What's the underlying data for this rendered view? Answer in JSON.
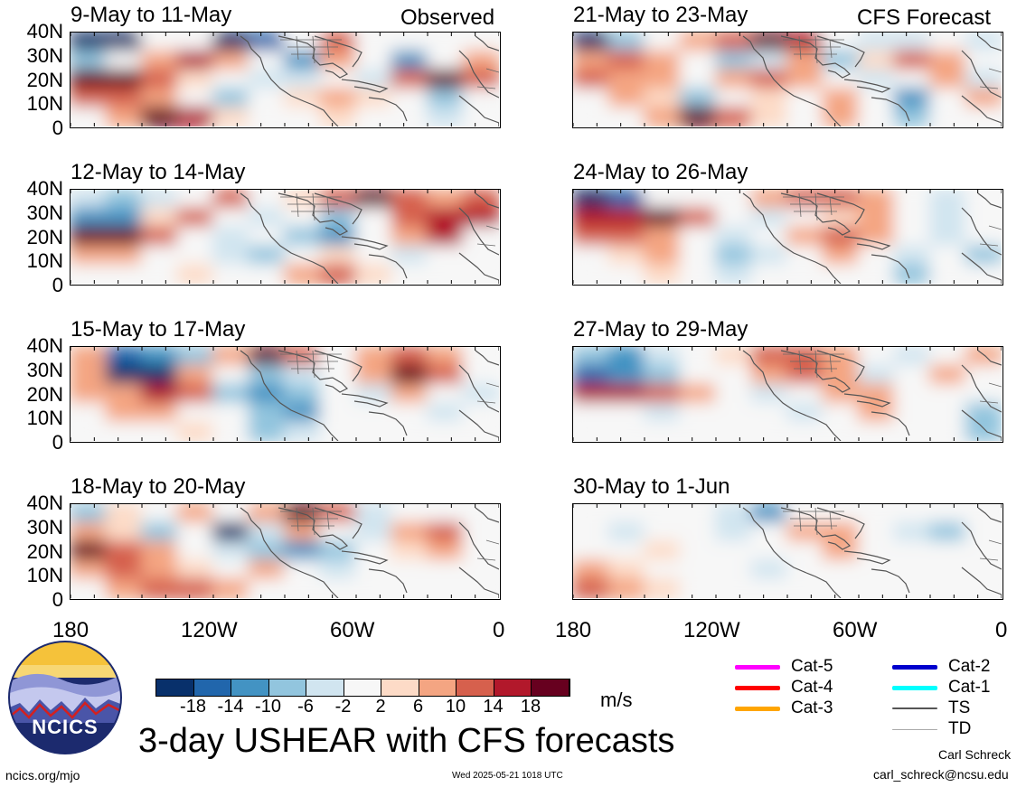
{
  "left_header": "Observed",
  "right_header": "CFS Forecast",
  "panels": [
    {
      "id": "p1",
      "title": "9-May to 11-May"
    },
    {
      "id": "p2",
      "title": "21-May to 23-May"
    },
    {
      "id": "p3",
      "title": "12-May to 14-May"
    },
    {
      "id": "p4",
      "title": "24-May to 26-May"
    },
    {
      "id": "p5",
      "title": "15-May to 17-May"
    },
    {
      "id": "p6",
      "title": "27-May to 29-May"
    },
    {
      "id": "p7",
      "title": "18-May to 20-May"
    },
    {
      "id": "p8",
      "title": "30-May to 1-Jun"
    }
  ],
  "lat_labels": [
    "40N",
    "30N",
    "20N",
    "10N",
    "0"
  ],
  "lon_labels": [
    "180",
    "120W",
    "60W",
    "0"
  ],
  "colorbar": {
    "colors": [
      "#08306b",
      "#2166ac",
      "#4393c3",
      "#92c5de",
      "#d1e5f0",
      "#f7f7f7",
      "#fddbc7",
      "#f4a582",
      "#d6604d",
      "#b2182b",
      "#67001f"
    ],
    "ticks": [
      "-18",
      "-14",
      "-10",
      "-6",
      "-2",
      "2",
      "6",
      "10",
      "14",
      "18"
    ],
    "units": "m/s"
  },
  "legend": [
    {
      "label": "Cat-5",
      "color": "#ff00ff"
    },
    {
      "label": "Cat-4",
      "color": "#ff0000"
    },
    {
      "label": "Cat-3",
      "color": "#ffa500"
    },
    {
      "label": "Cat-2",
      "color": "#0000cd"
    },
    {
      "label": "Cat-1",
      "color": "#00ffff"
    },
    {
      "label": "TS",
      "color": "#555555"
    },
    {
      "label": "TD",
      "color": "#aaaaaa"
    }
  ],
  "logo_text": "NCICS",
  "main_title": "3-day USHEAR with CFS forecasts",
  "footer": {
    "site": "ncics.org/mjo",
    "timestamp": "Wed 2025-05-21 1018 UTC",
    "author": "Carl Schreck",
    "email": "carl_schreck@ncsu.edu"
  },
  "fields": {
    "p1": [
      [
        -1,
        -1,
        0,
        0,
        -1,
        -0.8,
        0,
        0.5,
        0,
        0,
        0,
        0
      ],
      [
        -0.5,
        0,
        0.4,
        0.8,
        0.4,
        0,
        -0.6,
        0.3,
        0,
        -0.6,
        0,
        0.4
      ],
      [
        1,
        0.9,
        0.5,
        0.2,
        0,
        -0.3,
        -0.3,
        0,
        -0.3,
        0.5,
        0.9,
        0.6
      ],
      [
        0.5,
        0.6,
        0.4,
        0,
        -0.4,
        0,
        0.2,
        0.4,
        0.2,
        0,
        -0.4,
        0
      ],
      [
        0,
        0.4,
        0.9,
        0.7,
        0.2,
        0,
        0,
        0.2,
        0,
        0,
        -0.3,
        0
      ]
    ],
    "p2": [
      [
        -0.9,
        -0.5,
        0,
        0.3,
        0.5,
        0.9,
        0.8,
        0,
        -0.3,
        -0.3,
        0,
        -0.2
      ],
      [
        0.4,
        0.6,
        0.3,
        0,
        -0.5,
        -0.3,
        0.3,
        -0.4,
        0.2,
        0.6,
        0.4,
        0
      ],
      [
        0.6,
        0.3,
        0.4,
        0,
        0.3,
        0.6,
        0.3,
        0,
        -0.3,
        0,
        0.3,
        -0.3
      ],
      [
        0,
        0.4,
        0.2,
        -0.4,
        0,
        0.2,
        0,
        0.3,
        0,
        -0.6,
        0,
        0.3
      ],
      [
        0,
        0,
        0.4,
        0.9,
        0.5,
        0.2,
        0,
        0.3,
        0,
        -0.5,
        0,
        0
      ]
    ],
    "p3": [
      [
        -0.3,
        -0.5,
        -0.2,
        0,
        0.5,
        0,
        0.2,
        0.5,
        0.9,
        0.6,
        0.3,
        0.5
      ],
      [
        -0.6,
        -0.6,
        0.2,
        0.5,
        0,
        -0.3,
        0,
        -0.5,
        0,
        0.6,
        0.7,
        0.8
      ],
      [
        0.9,
        1,
        0.6,
        0,
        -0.2,
        0,
        -0.5,
        -0.7,
        0,
        0.4,
        0.7,
        0
      ],
      [
        0.4,
        0.3,
        0,
        0,
        -0.3,
        -0.5,
        0,
        0.2,
        0,
        -0.3,
        0,
        0
      ],
      [
        0,
        0,
        0,
        0.2,
        0,
        0,
        0.3,
        0.5,
        0.2,
        0,
        0,
        0
      ]
    ],
    "p4": [
      [
        -1,
        -0.8,
        0,
        0,
        0,
        0.4,
        0.6,
        0.5,
        0.3,
        0,
        -0.2,
        0
      ],
      [
        0.7,
        0.8,
        1,
        0.5,
        0,
        -0.3,
        0,
        0.2,
        0.3,
        0,
        -0.3,
        0
      ],
      [
        0.5,
        0.6,
        0.3,
        0,
        -0.2,
        0,
        0.3,
        0.5,
        0.3,
        0,
        -0.3,
        0
      ],
      [
        0,
        0.2,
        0.3,
        0,
        -0.5,
        -0.3,
        0,
        0.4,
        0,
        -0.3,
        0,
        -0.5
      ],
      [
        0,
        0,
        0.2,
        0,
        -0.2,
        0,
        0,
        0,
        0,
        -0.4,
        0,
        0
      ]
    ],
    "p5": [
      [
        0.4,
        -0.8,
        -0.6,
        -0.4,
        0.3,
        0.9,
        0.6,
        0,
        0.3,
        0.6,
        0.3,
        0
      ],
      [
        0.3,
        -1,
        -0.9,
        0.3,
        0,
        -0.4,
        -0.3,
        0,
        0.3,
        0.9,
        0.6,
        0
      ],
      [
        0.3,
        0.4,
        0.8,
        0.6,
        -0.4,
        -0.6,
        -0.5,
        0,
        -0.3,
        0.3,
        0,
        -0.2
      ],
      [
        0,
        0.3,
        0.4,
        0,
        0,
        -0.4,
        -0.6,
        0,
        0,
        0,
        -0.3,
        0
      ],
      [
        0,
        0,
        0,
        0.2,
        0,
        -0.5,
        -0.3,
        0,
        0,
        0,
        0,
        0
      ]
    ],
    "p6": [
      [
        -0.5,
        -0.6,
        -0.3,
        0,
        0.2,
        0.5,
        0.6,
        0.3,
        0,
        -0.2,
        0,
        0.4
      ],
      [
        -0.8,
        -0.7,
        -0.5,
        0,
        0,
        0.3,
        0.5,
        0.3,
        -0.3,
        0,
        0.3,
        0
      ],
      [
        0.8,
        0.7,
        0.5,
        0.3,
        0,
        -0.2,
        0,
        0.3,
        0.3,
        0,
        0,
        0
      ],
      [
        0,
        0,
        -0.2,
        0,
        0,
        0,
        -0.2,
        0,
        0.3,
        0,
        0,
        -0.4
      ],
      [
        0,
        0,
        0,
        0,
        0,
        0,
        0,
        0,
        0,
        0,
        0,
        -0.5
      ]
    ],
    "p7": [
      [
        -0.5,
        0.2,
        0,
        0.4,
        0,
        0.3,
        0.9,
        0.6,
        -0.3,
        0,
        0,
        0
      ],
      [
        0.3,
        0.2,
        -0.4,
        0,
        -0.9,
        -0.3,
        0.4,
        0,
        -0.3,
        0.3,
        0.6,
        0
      ],
      [
        0.9,
        0.6,
        0.3,
        0,
        -0.3,
        -0.5,
        -0.7,
        -0.4,
        0,
        0.2,
        0.3,
        0
      ],
      [
        0.4,
        0.5,
        0.3,
        0.2,
        0,
        0.3,
        0,
        -0.3,
        0,
        0,
        0,
        0
      ],
      [
        0,
        0.4,
        0.6,
        0.5,
        0.3,
        0,
        0,
        0,
        0,
        0,
        0,
        0
      ]
    ],
    "p8": [
      [
        0,
        0,
        0,
        0,
        -0.2,
        -0.6,
        0,
        0,
        0,
        0,
        0,
        0
      ],
      [
        0,
        -0.2,
        0,
        0,
        -0.3,
        0,
        0.4,
        0.3,
        0,
        -0.3,
        -0.5,
        0
      ],
      [
        0,
        0,
        0.2,
        0,
        0,
        0,
        0,
        0.3,
        0,
        0,
        0,
        0
      ],
      [
        0.4,
        0.2,
        0,
        0,
        0,
        -0.2,
        0,
        0,
        0,
        0,
        0,
        0
      ],
      [
        0.6,
        0.4,
        0.2,
        0,
        0,
        0,
        0,
        0,
        0,
        0,
        0,
        0
      ]
    ]
  }
}
